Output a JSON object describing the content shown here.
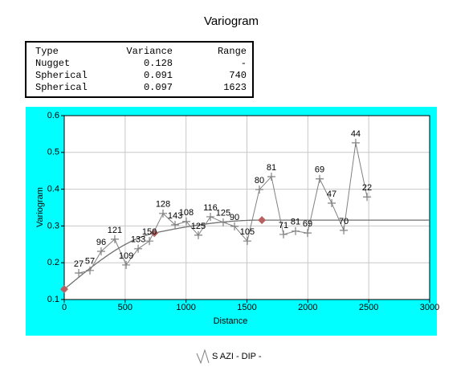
{
  "title": "Variogram",
  "table": {
    "header": [
      "Type",
      "Variance",
      "Range"
    ],
    "rows": [
      [
        "Nugget",
        0.128,
        "-"
      ],
      [
        "Spherical",
        0.091,
        740
      ],
      [
        "Spherical",
        0.097,
        1623
      ]
    ]
  },
  "chart_data": {
    "type": "line",
    "xlabel": "Distance",
    "ylabel": "Variogram",
    "xlim": [
      0,
      3000
    ],
    "xticks": [
      0,
      500,
      1000,
      1500,
      2000,
      2500,
      3000
    ],
    "ylim": [
      0.1,
      0.6
    ],
    "yticks": [
      0.1,
      0.2,
      0.3,
      0.4,
      0.5,
      0.6
    ],
    "grid": true,
    "series": [
      {
        "name": "S AZI - DIP -",
        "color": "#808080",
        "x": [
          119,
          211,
          303,
          415,
          508,
          607,
          699,
          811,
          910,
          1002,
          1101,
          1200,
          1305,
          1398,
          1503,
          1602,
          1701,
          1800,
          1899,
          1998,
          2097,
          2196,
          2295,
          2393,
          2486
        ],
        "values": [
          0.172,
          0.179,
          0.231,
          0.264,
          0.194,
          0.238,
          0.259,
          0.334,
          0.303,
          0.312,
          0.275,
          0.325,
          0.31,
          0.299,
          0.259,
          0.399,
          0.434,
          0.277,
          0.286,
          0.281,
          0.428,
          0.362,
          0.288,
          0.526,
          0.379
        ],
        "pairs": [
          27,
          57,
          96,
          121,
          109,
          133,
          150,
          128,
          143,
          108,
          125,
          116,
          125,
          90,
          105,
          80,
          81,
          71,
          81,
          69,
          69,
          47,
          70,
          44,
          22
        ]
      }
    ]
  }
}
